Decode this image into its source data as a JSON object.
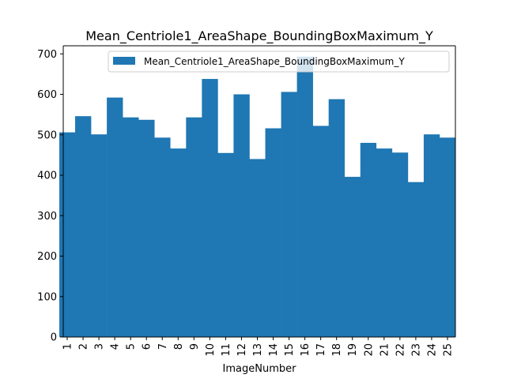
{
  "chart_data": {
    "type": "bar",
    "title": "Mean_Centriole1_AreaShape_BoundingBoxMaximum_Y",
    "xlabel": "ImageNumber",
    "ylabel": "",
    "categories": [
      "1",
      "2",
      "3",
      "4",
      "5",
      "6",
      "7",
      "8",
      "9",
      "10",
      "11",
      "12",
      "13",
      "14",
      "15",
      "16",
      "17",
      "18",
      "19",
      "20",
      "21",
      "22",
      "23",
      "24",
      "25"
    ],
    "series": [
      {
        "name": "Mean_Centriole1_AreaShape_BoundingBoxMaximum_Y",
        "color": "#1f77b4",
        "values": [
          506,
          546,
          501,
          592,
          543,
          537,
          493,
          466,
          543,
          638,
          455,
          600,
          440,
          516,
          606,
          693,
          522,
          588,
          396,
          480,
          466,
          456,
          383,
          501,
          493
        ]
      }
    ],
    "ylim": [
      0,
      720
    ],
    "yticks": [
      0,
      100,
      200,
      300,
      400,
      500,
      600,
      700
    ],
    "grid": false,
    "legend": "upper-right"
  }
}
